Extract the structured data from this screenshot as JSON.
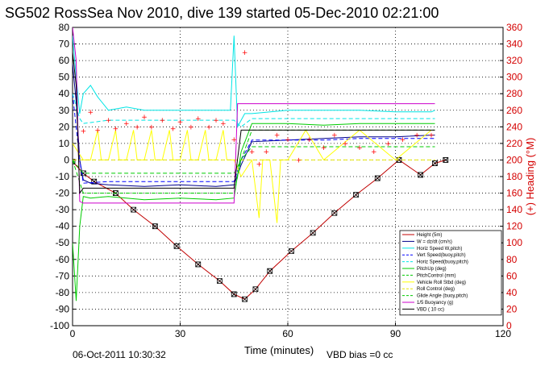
{
  "chart_data": {
    "type": "line",
    "title": "SG502 RossSea Nov 2010, dive 139 started 05-Dec-2010 02:21:00",
    "xlabel": "Time (minutes)",
    "ylabel_right": "(+) Heading (°M)",
    "xlim": [
      0,
      120
    ],
    "ylim": [
      -100,
      80
    ],
    "ylim_right": [
      0,
      360
    ],
    "x_ticks": [
      0,
      30,
      60,
      90,
      120
    ],
    "y_ticks": [
      -100,
      -90,
      -80,
      -70,
      -60,
      -50,
      -40,
      -30,
      -20,
      -10,
      0,
      10,
      20,
      30,
      40,
      50,
      60,
      70,
      80
    ],
    "y_ticks_right": [
      0,
      20,
      40,
      60,
      80,
      100,
      120,
      140,
      160,
      180,
      200,
      220,
      240,
      260,
      280,
      300,
      320,
      340,
      360
    ],
    "grid": true,
    "legend_position": "bottom-right",
    "series": [
      {
        "name": "Height (5m)",
        "color": "#c00000",
        "style": "solid-markers",
        "x": [
          0,
          3,
          6,
          12,
          17,
          23,
          29,
          35,
          41,
          45,
          48,
          51,
          55,
          61,
          67,
          73,
          79,
          85,
          91,
          97,
          101,
          104
        ],
        "y": [
          -1,
          -8,
          -13,
          -20,
          -30,
          -40,
          -52,
          -63,
          -73,
          -81,
          -84,
          -78,
          -67,
          -55,
          -44,
          -32,
          -21,
          -11,
          0,
          -9,
          -2,
          0
        ]
      },
      {
        "name": "W = dz/dt (cm/s)",
        "color": "#00008b",
        "style": "solid",
        "x": [
          0,
          1,
          2,
          3,
          5,
          10,
          20,
          30,
          40,
          45,
          47,
          50,
          60,
          70,
          80,
          90,
          100,
          101
        ],
        "y": [
          58,
          35,
          0,
          -12,
          -14,
          -15,
          -16,
          -15,
          -16,
          -15,
          -3,
          11,
          12,
          13,
          14,
          14,
          15,
          15
        ]
      },
      {
        "name": "Horiz Speed W,pitch)",
        "color": "#00e5e5",
        "style": "solid",
        "x": [
          0,
          1,
          2,
          3,
          5,
          7,
          10,
          15,
          20,
          30,
          40,
          44,
          45,
          46,
          48,
          50,
          60,
          70,
          80,
          90,
          100,
          101
        ],
        "y": [
          75,
          50,
          28,
          40,
          45,
          38,
          30,
          32,
          30,
          30,
          30,
          30,
          75,
          20,
          28,
          28,
          30,
          30,
          30,
          29,
          29,
          30
        ]
      },
      {
        "name": "Vert Speed(buoy,pitch)",
        "color": "#0000ff",
        "style": "dashed",
        "x": [
          0,
          2,
          3,
          10,
          20,
          30,
          40,
          45,
          47,
          50,
          60,
          70,
          80,
          90,
          101
        ],
        "y": [
          40,
          0,
          -14,
          -13,
          -13,
          -13,
          -13,
          -13,
          0,
          12,
          12,
          12,
          13,
          13,
          13
        ]
      },
      {
        "name": "Horiz Speed(buoy,pitch)",
        "color": "#00e5e5",
        "style": "dashed",
        "x": [
          0,
          2,
          3,
          10,
          20,
          30,
          40,
          45,
          47,
          50,
          60,
          70,
          80,
          90,
          101
        ],
        "y": [
          40,
          25,
          22,
          24,
          24,
          24,
          24,
          24,
          20,
          25,
          25,
          25,
          25,
          25,
          25
        ]
      },
      {
        "name": "PitchUp (deg)",
        "color": "#00cc00",
        "style": "solid",
        "x": [
          0,
          1,
          2,
          3,
          5,
          10,
          20,
          30,
          40,
          45,
          47,
          50,
          60,
          70,
          80,
          90,
          101
        ],
        "y": [
          -50,
          -85,
          -40,
          -22,
          -23,
          -22,
          -24,
          -23,
          -24,
          -23,
          5,
          22,
          22,
          21,
          22,
          22,
          22
        ]
      },
      {
        "name": "PitchControl (mm)",
        "color": "#00cc00",
        "style": "dashed",
        "x": [
          0,
          3,
          10,
          20,
          30,
          40,
          45,
          47,
          50,
          60,
          70,
          80,
          90,
          101
        ],
        "y": [
          0,
          -8,
          -8,
          -8,
          -8,
          -8,
          -8,
          0,
          8,
          8,
          8,
          8,
          8,
          8
        ]
      },
      {
        "name": "Vehicle Roll Stbd (deg)",
        "color": "#ffff00",
        "style": "solid",
        "x": [
          0,
          3,
          5,
          7,
          8,
          10,
          12,
          13,
          15,
          17,
          18,
          20,
          22,
          23,
          25,
          27,
          28,
          30,
          32,
          33,
          35,
          37,
          38,
          40,
          42,
          43,
          45,
          47,
          50,
          52,
          53,
          55,
          57,
          58,
          60,
          65,
          70,
          80,
          90,
          100
        ],
        "y": [
          10,
          0,
          0,
          18,
          0,
          0,
          18,
          0,
          0,
          18,
          0,
          0,
          18,
          0,
          0,
          18,
          0,
          0,
          18,
          0,
          0,
          18,
          0,
          0,
          18,
          0,
          0,
          -10,
          0,
          -35,
          0,
          0,
          -38,
          0,
          0,
          18,
          0,
          18,
          0,
          18
        ]
      },
      {
        "name": "Roll Control (deg)",
        "color": "#e6e600",
        "style": "dashed",
        "x": [
          0,
          3,
          45,
          47,
          101
        ],
        "y": [
          0,
          0,
          0,
          0,
          0
        ]
      },
      {
        "name": "Glide Angle (buoy,pitch)",
        "color": "#00cc00",
        "style": "dashed",
        "x": [
          0,
          3,
          10,
          20,
          30,
          40,
          45,
          47,
          50,
          60,
          70,
          80,
          90,
          101
        ],
        "y": [
          0,
          -20,
          -20,
          -20,
          -20,
          -20,
          -20,
          0,
          18,
          18,
          18,
          18,
          18,
          18
        ]
      },
      {
        "name": "1/5 Buoyancy (g)",
        "color": "#cc00cc",
        "style": "solid",
        "x": [
          0,
          1,
          2,
          3,
          45,
          46,
          50,
          101
        ],
        "y": [
          80,
          60,
          -25,
          -26,
          -26,
          34,
          34,
          34
        ]
      },
      {
        "name": "VBD ( 10 cc)",
        "color": "#000000",
        "style": "solid",
        "x": [
          0,
          1,
          2,
          3,
          45,
          47,
          101
        ],
        "y": [
          65,
          45,
          -20,
          -17,
          -17,
          18,
          18
        ]
      },
      {
        "name": "(+) Heading (°M)",
        "color": "#ff0000",
        "style": "markers",
        "axis": "right",
        "x": [
          3,
          5,
          7,
          10,
          12,
          15,
          18,
          20,
          22,
          25,
          28,
          30,
          33,
          35,
          38,
          40,
          42,
          45,
          48,
          50,
          52,
          54,
          57,
          60,
          63,
          66,
          70,
          73,
          76,
          80,
          84,
          88,
          92,
          96,
          100
        ],
        "y": [
          235,
          258,
          236,
          248,
          238,
          244,
          240,
          252,
          240,
          248,
          238,
          246,
          240,
          250,
          240,
          248,
          244,
          225,
          330,
          210,
          195,
          210,
          230,
          225,
          200,
          225,
          215,
          230,
          220,
          215,
          210,
          220,
          225,
          230,
          230
        ]
      }
    ],
    "annotations": {
      "timestamp": "06-Oct-2011 10:30:32",
      "vbd_bias": "VBD bias =0 cc"
    }
  }
}
